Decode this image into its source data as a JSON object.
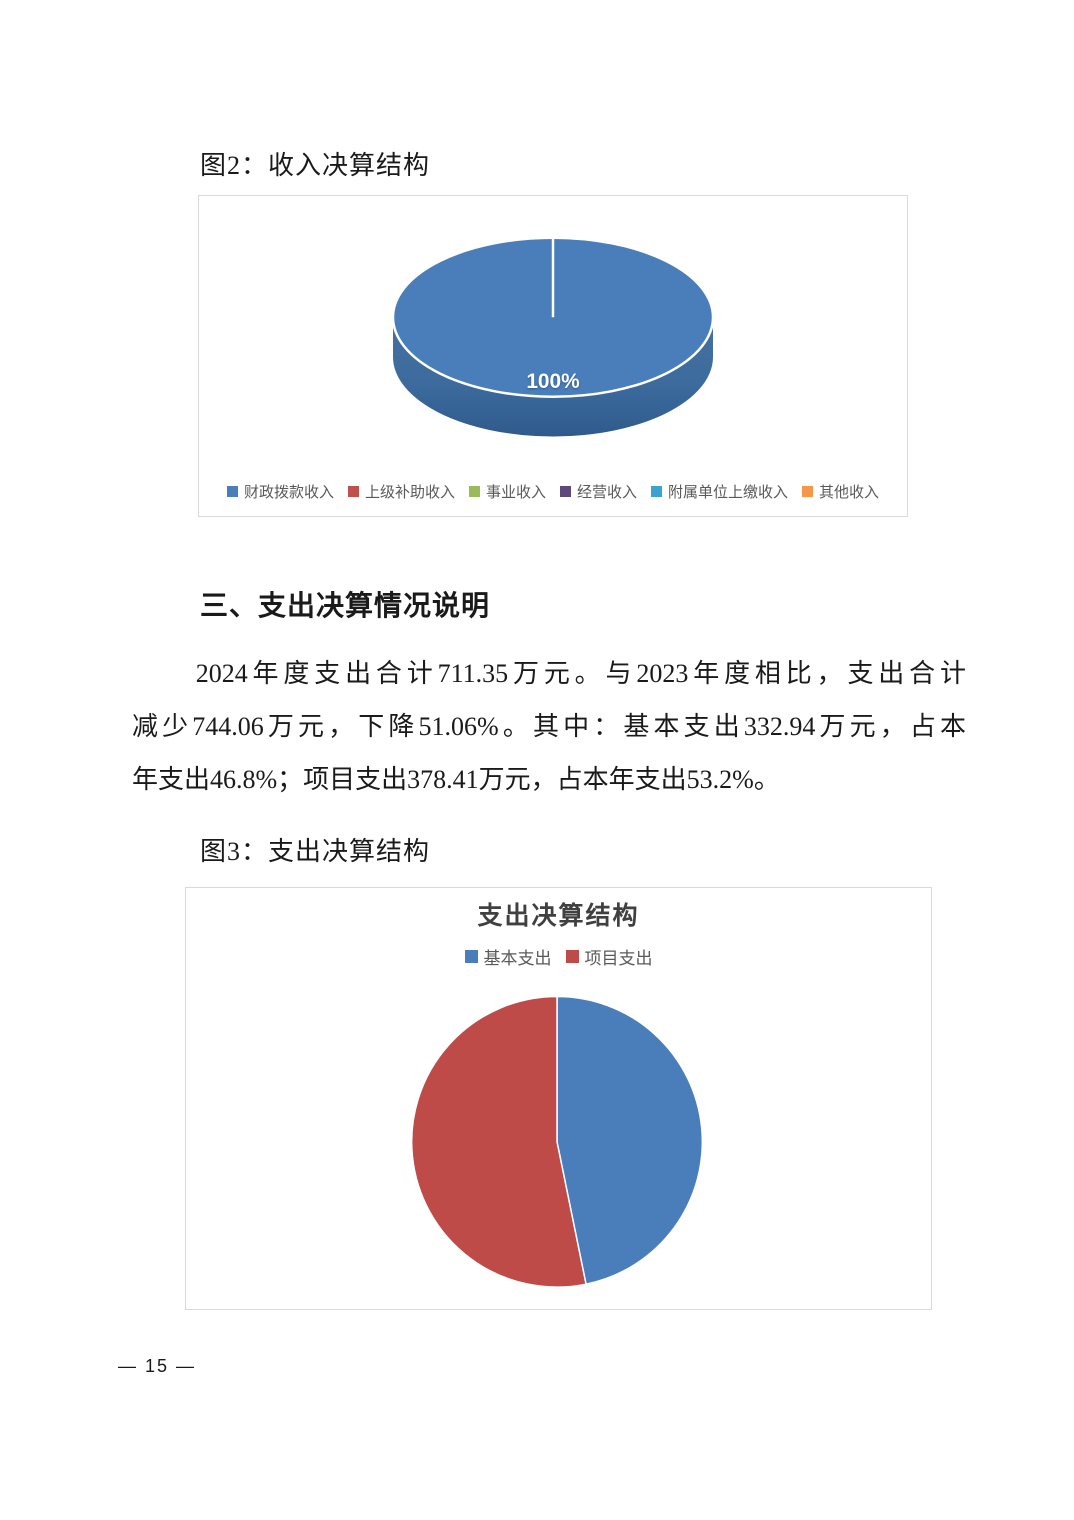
{
  "figure2": {
    "caption": "图2：收入决算结构"
  },
  "section": {
    "heading": "三、支出决算情况说明"
  },
  "paragraph": {
    "lines": [
      "2024年度支出合计711.35万元。与2023年度相比，支出合计",
      "减少744.06万元，下降51.06%。其中：基本支出332.94万元，占本",
      "年支出46.8%；项目支出378.41万元，占本年支出53.2%。"
    ]
  },
  "figure3": {
    "caption": "图3：支出决算结构"
  },
  "page": {
    "number_label": "— 15 —"
  },
  "chart_data": [
    {
      "type": "pie",
      "style": "3d",
      "title": "",
      "categories": [
        "财政拨款收入",
        "上级补助收入",
        "事业收入",
        "经营收入",
        "附属单位上缴收入",
        "其他收入"
      ],
      "values": [
        100,
        0,
        0,
        0,
        0,
        0
      ],
      "unit": "%",
      "data_label": "100%",
      "colors": [
        "#4A7EBB",
        "#C0504D",
        "#9BBB59",
        "#5F497A",
        "#3BA3D0",
        "#F79646"
      ],
      "legend_position": "bottom",
      "legend_text_color": "#595959"
    },
    {
      "type": "pie",
      "title": "支出决算结构",
      "categories": [
        "基本支出",
        "项目支出"
      ],
      "values": [
        46.8,
        53.2
      ],
      "unit": "%",
      "colors": [
        "#4A7EBB",
        "#BE4B48"
      ],
      "legend_position": "top",
      "legend_text_color": "#595959",
      "title_color": "#404040"
    }
  ]
}
